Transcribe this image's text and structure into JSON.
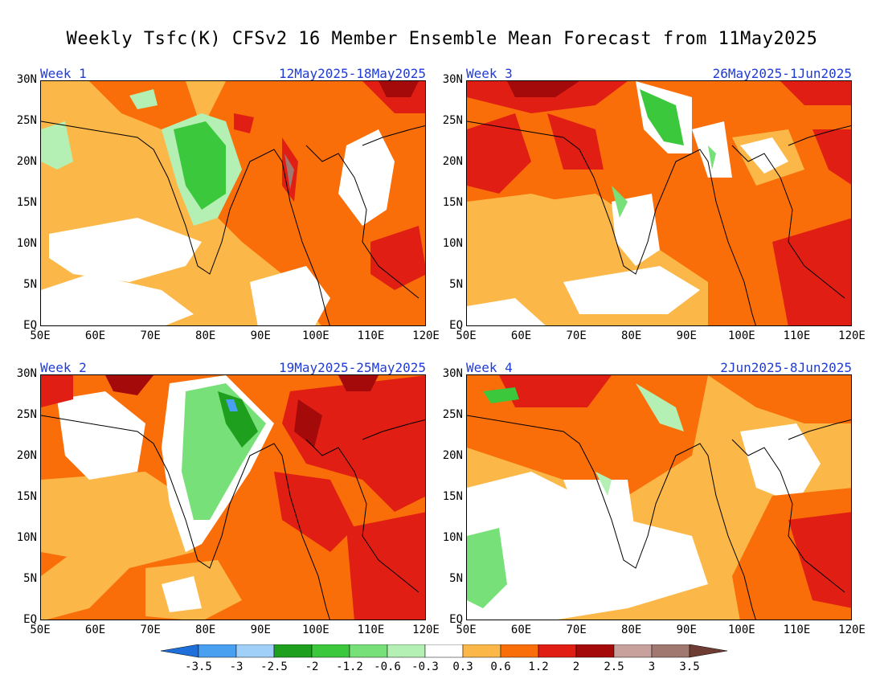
{
  "title": "Weekly Tsfc(K) CFSv2 16 Member Ensemble Mean Forecast from 11May2025",
  "panels": [
    {
      "week": "Week 1",
      "dates": "12May2025-18May2025"
    },
    {
      "week": "Week 3",
      "dates": "26May2025-1Jun2025"
    },
    {
      "week": "Week 2",
      "dates": "19May2025-25May2025"
    },
    {
      "week": "Week 4",
      "dates": "2Jun2025-8Jun2025"
    }
  ],
  "lat_ticks": [
    "30N",
    "25N",
    "20N",
    "15N",
    "10N",
    "5N",
    "EQ"
  ],
  "lon_ticks": [
    "50E",
    "60E",
    "70E",
    "80E",
    "90E",
    "100E",
    "110E",
    "120E"
  ],
  "colorbar": {
    "labels": [
      "-3.5",
      "-3",
      "-2.5",
      "-2",
      "-1.2",
      "-0.6",
      "-0.3",
      "0.3",
      "0.6",
      "1.2",
      "2",
      "2.5",
      "3",
      "3.5"
    ],
    "colors": [
      "#1e6fd9",
      "#4aa0f0",
      "#a0d0f8",
      "#1ea01e",
      "#3cc83c",
      "#78e078",
      "#b4f0b4",
      "#ffffff",
      "#fbb848",
      "#fa6e0a",
      "#e01e14",
      "#a50a0a",
      "#c8a09c",
      "#a07870",
      "#6e3c32"
    ]
  },
  "chart_data": {
    "type": "heatmap",
    "title": "Weekly Tsfc(K) CFSv2 16 Member Ensemble Mean Forecast from 11May2025",
    "variable": "Tsfc(K)",
    "lon_range": [
      50,
      120
    ],
    "lat_range": [
      0,
      30
    ],
    "contour_levels": [
      -3.5,
      -3,
      -2.5,
      -2,
      -1.2,
      -0.6,
      -0.3,
      0.3,
      0.6,
      1.2,
      2,
      2.5,
      3,
      3.5
    ],
    "panels": [
      {
        "week": "Week 1",
        "dates": "12May2025-18May2025"
      },
      {
        "week": "Week 2",
        "dates": "19May2025-25May2025"
      },
      {
        "week": "Week 3",
        "dates": "26May2025-1Jun2025"
      },
      {
        "week": "Week 4",
        "dates": "2Jun2025-8Jun2025"
      }
    ]
  }
}
